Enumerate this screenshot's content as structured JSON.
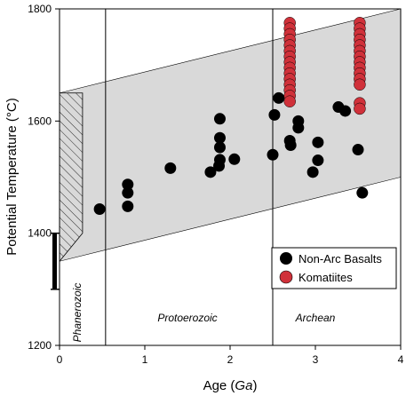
{
  "chart_data": {
    "type": "scatter",
    "xlabel": "Age (Ga)",
    "xlabel_main": "Age (",
    "xlabel_unit": "Ga",
    "xlabel_close": ")",
    "ylabel": "Potential Temperature (°C)",
    "xlim": [
      0,
      4
    ],
    "ylim": [
      1200,
      1800
    ],
    "xticks": [
      0,
      1,
      2,
      3,
      4
    ],
    "yticks": [
      1200,
      1400,
      1600,
      1800
    ],
    "grid": false,
    "legend_position": "bottom-right",
    "era_boundaries": [
      0.54,
      2.5
    ],
    "eras": [
      {
        "label": "Phanerozoic",
        "orientation": "vertical",
        "x": 0.27
      },
      {
        "label": "Protoerozoic",
        "orientation": "horizontal",
        "x": 1.5
      },
      {
        "label": "Archean",
        "orientation": "horizontal",
        "x": 3.0
      }
    ],
    "envelope": {
      "color": "#d9d9d9",
      "upper": [
        [
          0,
          1650
        ],
        [
          4,
          1800
        ]
      ],
      "lower": [
        [
          0,
          1350
        ],
        [
          4,
          1500
        ]
      ]
    },
    "hatched_box": {
      "x": [
        0,
        0.27
      ],
      "y_bottom_left": 1350,
      "y_bottom_right": 1400,
      "y_top": 1650
    },
    "present_day_bar": {
      "x": 0,
      "y": [
        1300,
        1400
      ]
    },
    "series": [
      {
        "name": "Non-Arc Basalts",
        "color": "#000000",
        "points": [
          [
            0.47,
            1443
          ],
          [
            0.8,
            1487
          ],
          [
            0.8,
            1472
          ],
          [
            0.8,
            1448
          ],
          [
            1.3,
            1516
          ],
          [
            1.77,
            1509
          ],
          [
            1.87,
            1520
          ],
          [
            1.88,
            1604
          ],
          [
            1.88,
            1570
          ],
          [
            1.88,
            1553
          ],
          [
            1.88,
            1531
          ],
          [
            2.05,
            1532
          ],
          [
            2.5,
            1540
          ],
          [
            2.52,
            1611
          ],
          [
            2.57,
            1641
          ],
          [
            2.7,
            1565
          ],
          [
            2.71,
            1557
          ],
          [
            2.8,
            1600
          ],
          [
            2.8,
            1588
          ],
          [
            2.97,
            1509
          ],
          [
            3.03,
            1530
          ],
          [
            3.03,
            1562
          ],
          [
            3.27,
            1625
          ],
          [
            3.35,
            1618
          ],
          [
            3.5,
            1549
          ],
          [
            3.55,
            1472
          ]
        ]
      },
      {
        "name": "Komatiites",
        "color": "#d0313a",
        "points": [
          [
            2.7,
            1775
          ],
          [
            2.7,
            1765
          ],
          [
            2.7,
            1755
          ],
          [
            2.7,
            1745
          ],
          [
            2.7,
            1735
          ],
          [
            2.7,
            1725
          ],
          [
            2.7,
            1715
          ],
          [
            2.7,
            1705
          ],
          [
            2.7,
            1695
          ],
          [
            2.7,
            1685
          ],
          [
            2.7,
            1675
          ],
          [
            2.7,
            1665
          ],
          [
            2.7,
            1655
          ],
          [
            2.7,
            1645
          ],
          [
            2.7,
            1635
          ],
          [
            3.52,
            1775
          ],
          [
            3.52,
            1765
          ],
          [
            3.52,
            1755
          ],
          [
            3.52,
            1745
          ],
          [
            3.52,
            1735
          ],
          [
            3.52,
            1725
          ],
          [
            3.52,
            1715
          ],
          [
            3.52,
            1705
          ],
          [
            3.52,
            1695
          ],
          [
            3.52,
            1685
          ],
          [
            3.52,
            1675
          ],
          [
            3.52,
            1665
          ],
          [
            3.52,
            1632
          ],
          [
            3.52,
            1622
          ]
        ]
      }
    ]
  }
}
